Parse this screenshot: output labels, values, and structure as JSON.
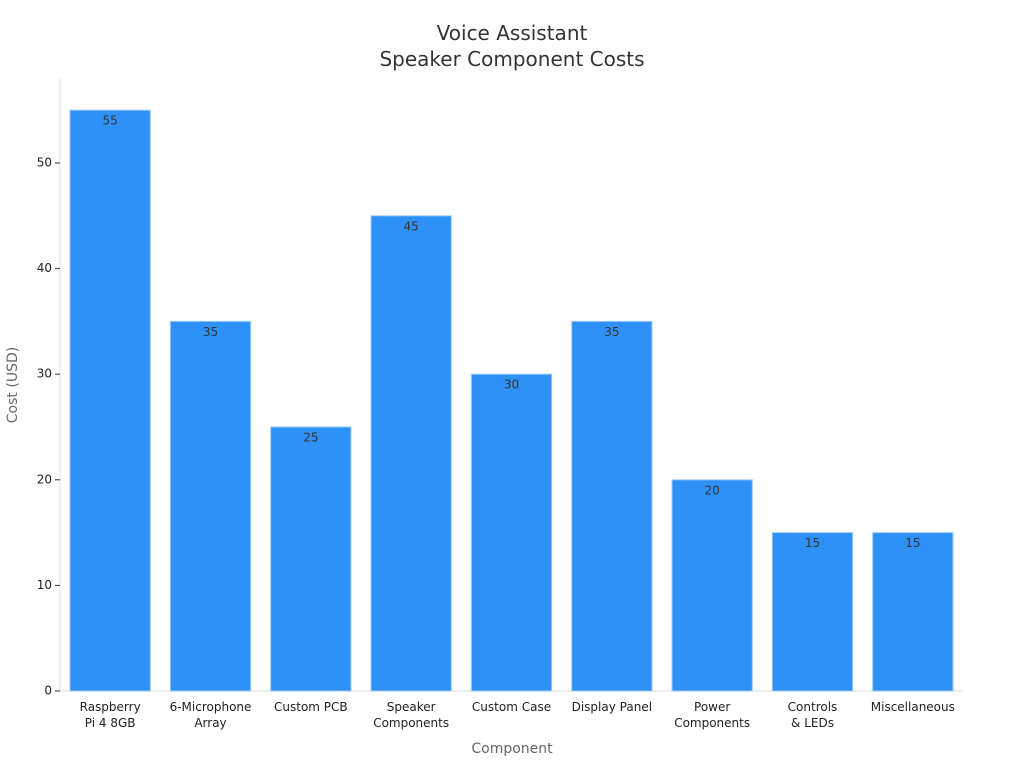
{
  "chart_data": {
    "type": "bar",
    "title": "Voice Assistant\nSpeaker Component Costs",
    "x_label": "Component",
    "y_label": "Cost (USD)",
    "categories": [
      "Raspberry\nPi 4 8GB",
      "6-Microphone\nArray",
      "Custom PCB",
      "Speaker\nComponents",
      "Custom Case",
      "Display Panel",
      "Power\nComponents",
      "Controls\n& LEDs",
      "Miscellaneous"
    ],
    "values": [
      55,
      35,
      25,
      45,
      30,
      35,
      20,
      15,
      15
    ],
    "color": "#2e91f8",
    "ylim": [
      0,
      58
    ],
    "yticks": [
      0,
      10,
      20,
      30,
      40,
      50
    ],
    "grid": false
  }
}
